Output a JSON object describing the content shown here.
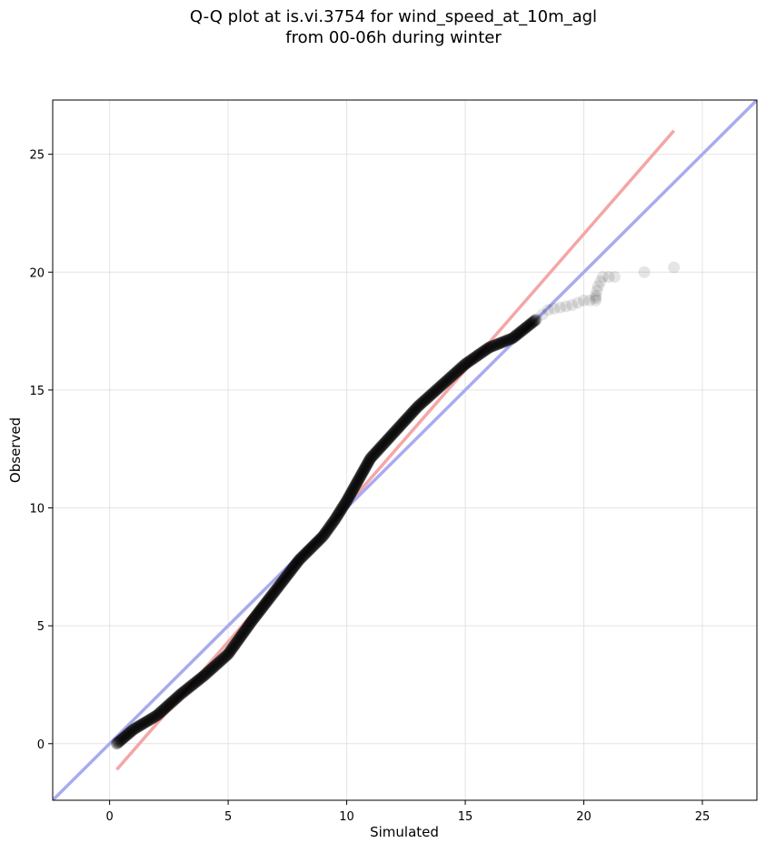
{
  "chart_data": {
    "type": "scatter",
    "title_line1": "Q-Q plot at is.vi.3754 for wind_speed_at_10m_agl",
    "title_line2": "from 00-06h during winter",
    "xlabel": "Simulated",
    "ylabel": "Observed",
    "xlim": [
      -2.4,
      27.3
    ],
    "ylim": [
      -2.4,
      27.3
    ],
    "xticks": [
      0,
      5,
      10,
      15,
      20,
      25
    ],
    "yticks": [
      0,
      5,
      10,
      15,
      20,
      25
    ],
    "grid": true,
    "quantile_anchors": [
      [
        0.3,
        0.0
      ],
      [
        1.0,
        0.6
      ],
      [
        2.0,
        1.2
      ],
      [
        3.0,
        2.1
      ],
      [
        4.0,
        2.9
      ],
      [
        5.0,
        3.8
      ],
      [
        6.0,
        5.2
      ],
      [
        7.0,
        6.5
      ],
      [
        8.0,
        7.8
      ],
      [
        9.0,
        8.8
      ],
      [
        9.5,
        9.5
      ],
      [
        10.0,
        10.3
      ],
      [
        10.5,
        11.2
      ],
      [
        11.0,
        12.1
      ],
      [
        12.0,
        13.2
      ],
      [
        13.0,
        14.3
      ],
      [
        14.0,
        15.2
      ],
      [
        15.0,
        16.1
      ],
      [
        16.0,
        16.8
      ],
      [
        17.0,
        17.2
      ],
      [
        18.0,
        18.0
      ],
      [
        18.5,
        18.4
      ],
      [
        19.0,
        18.5
      ],
      [
        19.5,
        18.6
      ],
      [
        20.0,
        18.8
      ],
      [
        20.5,
        18.8
      ],
      [
        20.5,
        19.0
      ],
      [
        20.6,
        19.4
      ],
      [
        20.8,
        19.8
      ],
      [
        21.3,
        19.8
      ],
      [
        23.8,
        20.2
      ]
    ],
    "reference_lines": [
      {
        "name": "",
        "color": "#f4a6a6",
        "points": [
          [
            0.3,
            -1.1
          ],
          [
            23.8,
            26.0
          ]
        ]
      },
      {
        "name": "",
        "color": "#aaaaf0",
        "points": [
          [
            -2.4,
            -2.4
          ],
          [
            27.3,
            27.3
          ]
        ]
      }
    ],
    "point_color": "#000000"
  }
}
